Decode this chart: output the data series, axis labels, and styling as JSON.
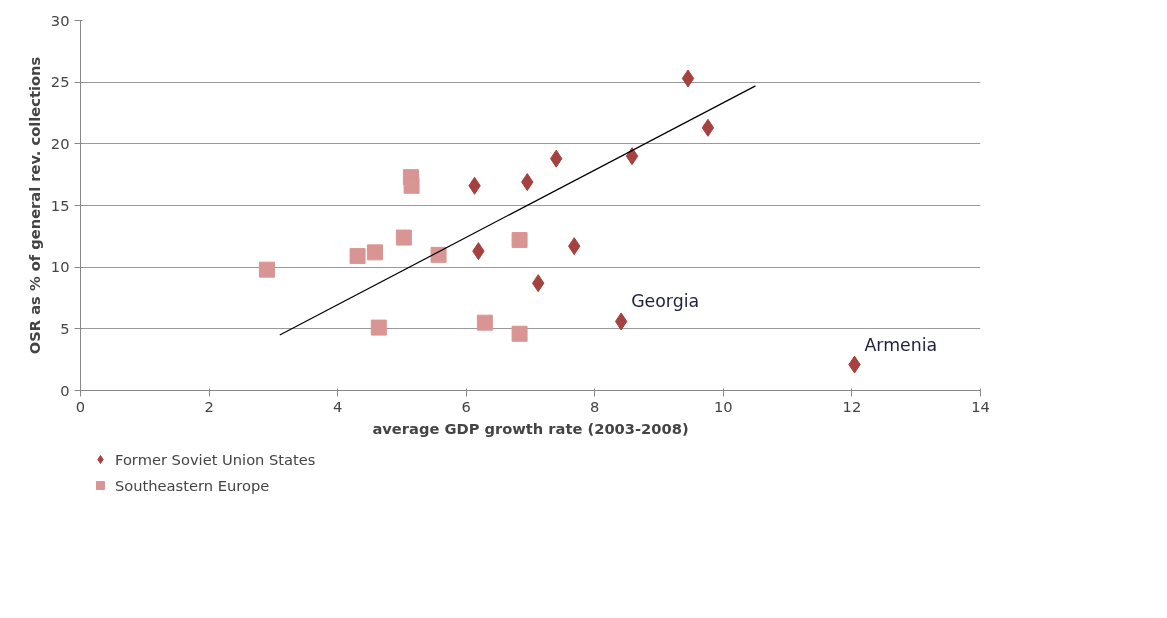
{
  "chart_data": {
    "type": "scatter",
    "xlabel": "average GDP growth rate (2003-2008)",
    "ylabel": "OSR as % of general rev. collections",
    "xlim": [
      0,
      14
    ],
    "xticks": [
      0,
      2,
      4,
      6,
      8,
      10,
      12,
      14
    ],
    "ylim": [
      0,
      30
    ],
    "yticks": [
      0,
      5,
      10,
      15,
      20,
      25,
      30
    ],
    "grid": "y",
    "legend": "bottom left",
    "series": [
      {
        "name": "Former Soviet Union States",
        "color": "#a5413f",
        "marker": "diamond",
        "x": [
          9.45,
          9.76,
          8.58,
          7.4,
          6.95,
          6.13,
          6.19,
          7.68,
          7.12,
          8.41,
          12.04
        ],
        "values": [
          25.3,
          21.3,
          19.0,
          18.8,
          16.9,
          16.6,
          11.3,
          11.7,
          8.7,
          5.6,
          2.1
        ]
      },
      {
        "name": "Southeastern Europe",
        "color": "#d99594",
        "marker": "square",
        "x": [
          2.9,
          4.31,
          4.58,
          5.03,
          5.14,
          5.15,
          5.57,
          6.83,
          4.64,
          6.29,
          6.83
        ],
        "values": [
          9.8,
          10.9,
          11.2,
          12.4,
          17.3,
          16.6,
          11.0,
          12.2,
          5.1,
          5.5,
          4.6
        ]
      },
      {
        "type": "line",
        "color": "#000000",
        "x": [
          3.1,
          10.5
        ],
        "values": [
          4.5,
          24.7
        ]
      }
    ],
    "annotations": [
      {
        "text": "Georgia",
        "x": 8.41,
        "y": 5.6
      },
      {
        "text": "Armenia",
        "x": 12.04,
        "y": 2.1
      }
    ]
  }
}
